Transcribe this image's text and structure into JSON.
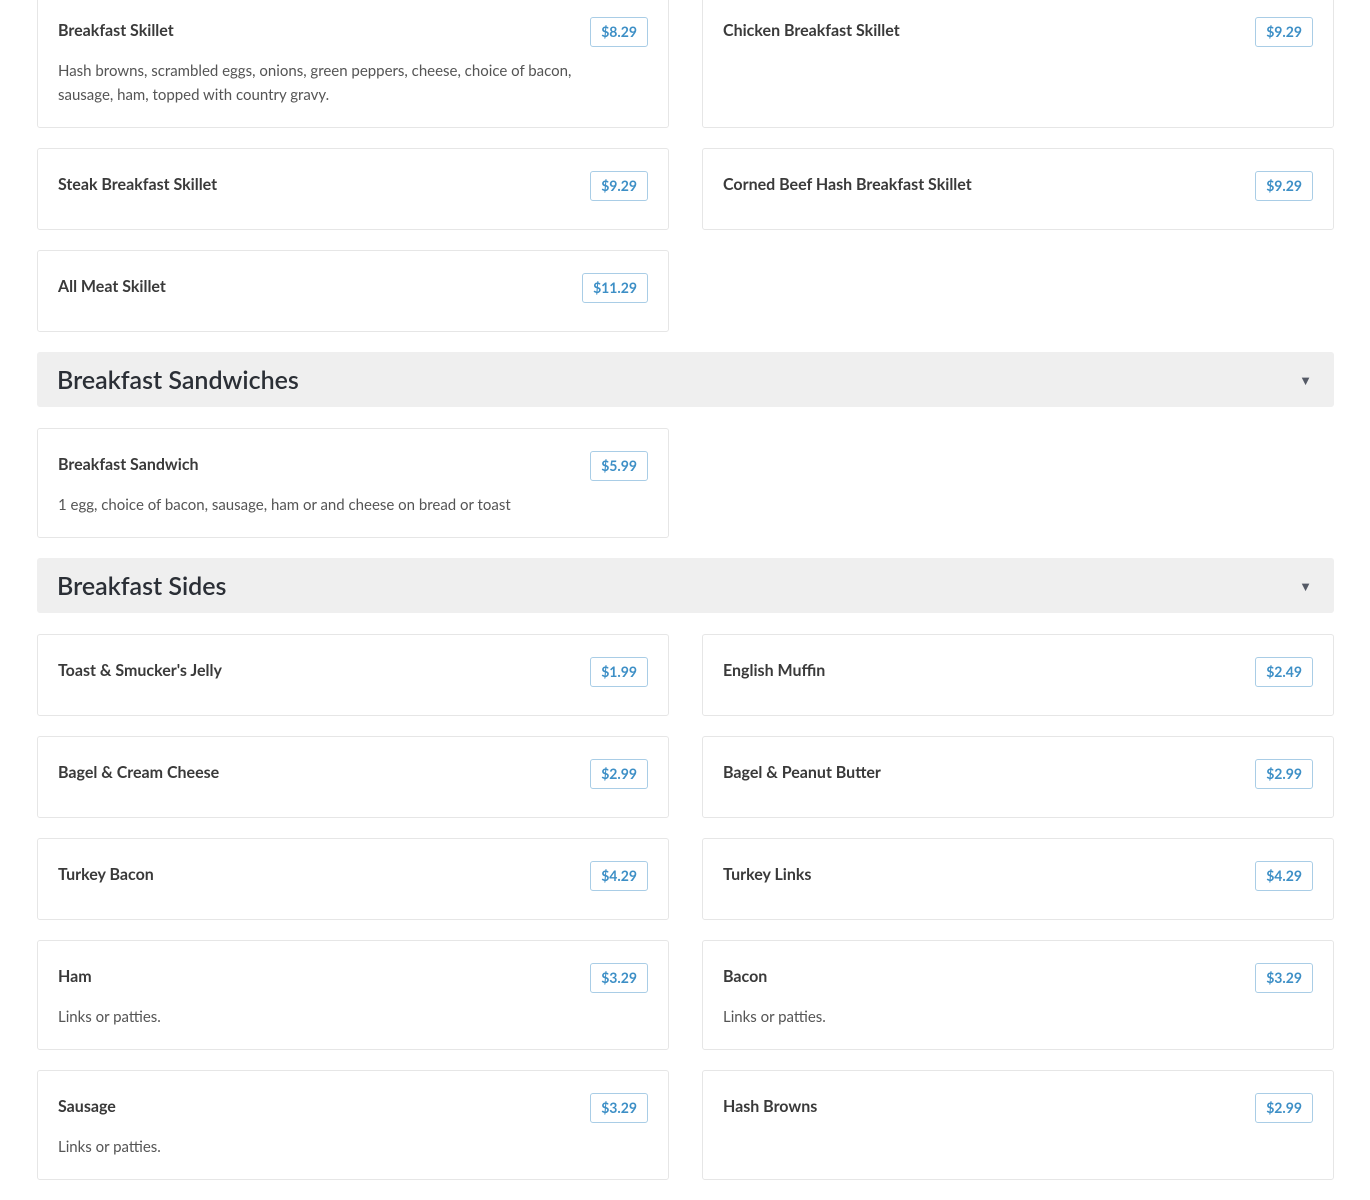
{
  "sections": [
    {
      "title": null,
      "items": [
        {
          "name": "Breakfast Skillet",
          "price": "$8.29",
          "description": "Hash browns, scrambled eggs, onions, green peppers, cheese, choice of bacon, sausage, ham, topped with country gravy."
        },
        {
          "name": "Chicken Breakfast Skillet",
          "price": "$9.29"
        },
        {
          "name": "Steak Breakfast Skillet",
          "price": "$9.29"
        },
        {
          "name": "Corned Beef Hash Breakfast Skillet",
          "price": "$9.29"
        },
        {
          "name": "All Meat Skillet",
          "price": "$11.29"
        }
      ]
    },
    {
      "title": "Breakfast Sandwiches",
      "toggle_icon": "caret-down-icon",
      "items": [
        {
          "name": "Breakfast Sandwich",
          "price": "$5.99",
          "description": "1 egg, choice of bacon, sausage, ham or and cheese on bread or toast"
        }
      ]
    },
    {
      "title": "Breakfast Sides",
      "toggle_icon": "caret-down-icon",
      "items": [
        {
          "name": "Toast & Smucker's Jelly",
          "price": "$1.99"
        },
        {
          "name": "English Muffin",
          "price": "$2.49"
        },
        {
          "name": "Bagel & Cream Cheese",
          "price": "$2.99"
        },
        {
          "name": "Bagel & Peanut Butter",
          "price": "$2.99"
        },
        {
          "name": "Turkey Bacon",
          "price": "$4.29"
        },
        {
          "name": "Turkey Links",
          "price": "$4.29"
        },
        {
          "name": "Ham",
          "price": "$3.29",
          "description": "Links or patties."
        },
        {
          "name": "Bacon",
          "price": "$3.29",
          "description": "Links or patties."
        },
        {
          "name": "Sausage",
          "price": "$3.29",
          "description": "Links or patties."
        },
        {
          "name": "Hash Browns",
          "price": "$2.99"
        }
      ]
    }
  ],
  "colors": {
    "price": "#3d8fc6",
    "price_border": "#a9cde6",
    "section_bg": "#efefef"
  }
}
